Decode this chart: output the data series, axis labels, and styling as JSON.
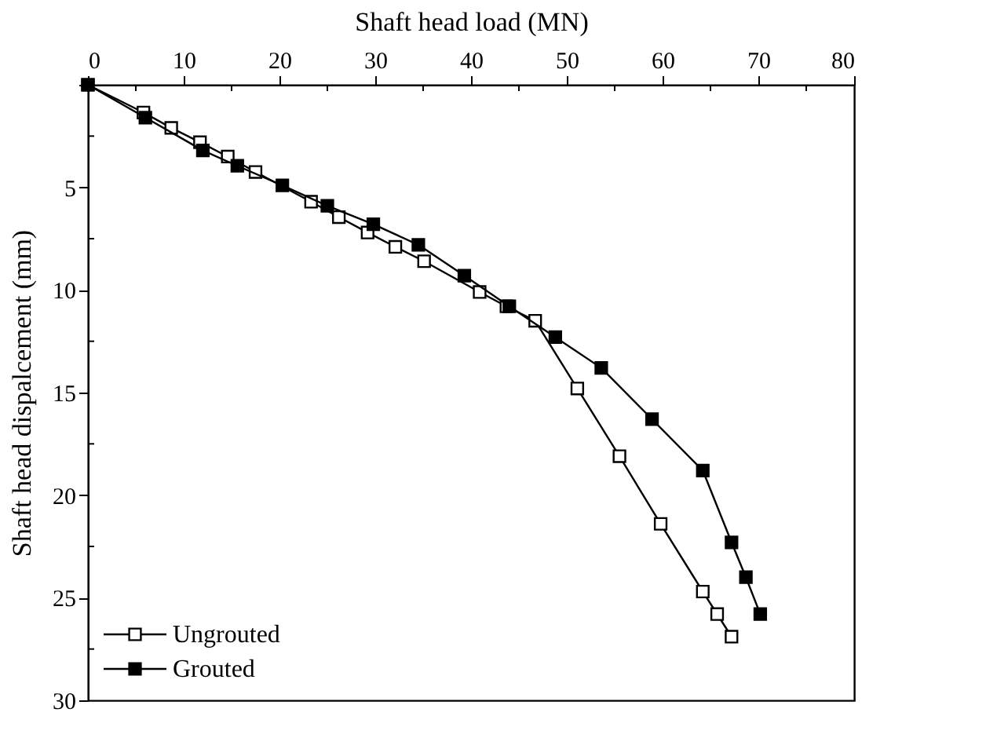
{
  "chart_data": {
    "type": "line",
    "xlabel": "Shaft head load (MN)",
    "ylabel": "Shaft head dispalcement (mm)",
    "xlim": [
      0,
      80
    ],
    "ylim": [
      30,
      0
    ],
    "xticks": [
      0,
      {
        "value": 5,
        "label": null
      },
      10,
      {
        "value": 15,
        "label": null
      },
      20,
      {
        "value": 25,
        "label": null
      },
      30,
      {
        "value": 35,
        "label": null
      },
      40,
      {
        "value": 45,
        "label": null
      },
      50,
      {
        "value": 55,
        "label": null
      },
      60,
      {
        "value": 65,
        "label": null
      },
      70,
      {
        "value": 75,
        "label": null
      },
      80
    ],
    "yticks": [
      {
        "value": 0,
        "label": null
      },
      {
        "value": 2.5,
        "label": null
      },
      5,
      {
        "value": 7.5,
        "label": null
      },
      10,
      {
        "value": 12.5,
        "label": null
      },
      15,
      {
        "value": 17.5,
        "label": null
      },
      20,
      {
        "value": 22.5,
        "label": null
      },
      25,
      {
        "value": 27.5,
        "label": null
      },
      30
    ],
    "grid": false,
    "legend": "bottom left",
    "marker": "square",
    "line_style": "solid",
    "series": [
      {
        "name": "Ungrouted",
        "color": "#000000",
        "x": [
          0,
          5.8,
          8.7,
          11.7,
          14.6,
          17.5,
          23.3,
          26.2,
          29.2,
          32.1,
          35.1,
          40.9,
          43.7,
          46.7,
          51.1,
          55.5,
          59.8,
          64.2,
          65.7,
          67.2
        ],
        "values": [
          0,
          1.35,
          2.1,
          2.8,
          3.5,
          4.25,
          5.7,
          6.45,
          7.2,
          7.9,
          8.6,
          10.1,
          10.8,
          11.5,
          14.8,
          18.1,
          21.4,
          24.7,
          25.8,
          26.9
        ]
      },
      {
        "name": "Grouted",
        "color": "#000000",
        "x": [
          0,
          6.0,
          12.0,
          15.6,
          20.3,
          25.0,
          29.8,
          34.5,
          39.3,
          44.0,
          48.8,
          53.6,
          58.9,
          64.2,
          67.2,
          68.7,
          70.2
        ],
        "values": [
          0,
          1.6,
          3.2,
          3.95,
          4.9,
          5.9,
          6.8,
          7.8,
          9.3,
          10.8,
          12.3,
          13.8,
          16.3,
          18.8,
          22.3,
          24.0,
          25.8
        ]
      }
    ]
  }
}
